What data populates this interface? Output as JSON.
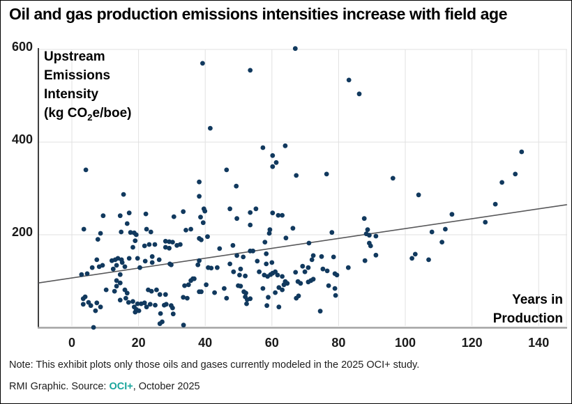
{
  "title": "Oil and gas production emissions intensities increase with field age",
  "y_axis": {
    "label_line1": "Upstream",
    "label_line2": "Emissions",
    "label_line3": "Intensity",
    "label_line4_pre": "(kg CO",
    "label_line4_sub": "2",
    "label_line4_post": "e/boe)"
  },
  "x_axis": {
    "label_line1": "Years in",
    "label_line2": "Production"
  },
  "note": "Note: This exhibit plots only those oils and gases currently modeled in the 2025 OCI+ study.",
  "source": {
    "prefix": "RMI Graphic. Source: ",
    "link": "OCI+",
    "suffix": ", October 2025"
  },
  "colors": {
    "dot": "#11395e",
    "trend": "#58585a",
    "grid": "#e1e1e1",
    "axis_bottom": "#a3a3a3",
    "axis_left": "#3f3f3f",
    "tick_text": "#1a1a1a",
    "source_link": "#1aa59c"
  },
  "chart_data": {
    "type": "scatter",
    "title": "Oil and gas production emissions intensities increase with field age",
    "xlabel": "Years in Production",
    "ylabel": "Upstream Emissions Intensity (kg CO2e/boe)",
    "xlim": [
      -10,
      148.5
    ],
    "ylim": [
      0,
      617
    ],
    "x_ticks": [
      0,
      20,
      40,
      60,
      80,
      100,
      120,
      140
    ],
    "y_ticks": [
      200,
      400,
      600
    ],
    "grid": true,
    "trend_line": {
      "x1": -10,
      "y1": 96,
      "x2": 148.5,
      "y2": 265
    },
    "points": [
      [
        67,
        602
      ],
      [
        39.2,
        570
      ],
      [
        53.5,
        555
      ],
      [
        83.1,
        534
      ],
      [
        86.2,
        504
      ],
      [
        41.5,
        430
      ],
      [
        64,
        392
      ],
      [
        57.3,
        388
      ],
      [
        60.2,
        371
      ],
      [
        61.3,
        356
      ],
      [
        60.2,
        347
      ],
      [
        46.4,
        340
      ],
      [
        4.2,
        340
      ],
      [
        38.2,
        314
      ],
      [
        49.3,
        305
      ],
      [
        67.3,
        328
      ],
      [
        76.4,
        331
      ],
      [
        96.3,
        322
      ],
      [
        134.9,
        379
      ],
      [
        133,
        331
      ],
      [
        129,
        313
      ],
      [
        104,
        286
      ],
      [
        127,
        266
      ],
      [
        114,
        244
      ],
      [
        124,
        227
      ],
      [
        112,
        212
      ],
      [
        108,
        206
      ],
      [
        111,
        184
      ],
      [
        103,
        158
      ],
      [
        102,
        149
      ],
      [
        107,
        146
      ],
      [
        15.5,
        287
      ],
      [
        38.2,
        283
      ],
      [
        39.6,
        256
      ],
      [
        39.9,
        251
      ],
      [
        33.4,
        250
      ],
      [
        17.2,
        247
      ],
      [
        22.2,
        245
      ],
      [
        9.4,
        241
      ],
      [
        14.5,
        241
      ],
      [
        30.6,
        239
      ],
      [
        38.6,
        238
      ],
      [
        39.4,
        226
      ],
      [
        16.6,
        224
      ],
      [
        3.6,
        212
      ],
      [
        22.4,
        212
      ],
      [
        23.7,
        206
      ],
      [
        34.2,
        210
      ],
      [
        35.7,
        212
      ],
      [
        47.4,
        256
      ],
      [
        55.2,
        256
      ],
      [
        53.5,
        248
      ],
      [
        49.5,
        235
      ],
      [
        53.5,
        221
      ],
      [
        60.2,
        247
      ],
      [
        61.9,
        242
      ],
      [
        63.1,
        242
      ],
      [
        59.4,
        211
      ],
      [
        59.2,
        203
      ],
      [
        66.3,
        214
      ],
      [
        64.2,
        193
      ],
      [
        78,
        205
      ],
      [
        87.7,
        235
      ],
      [
        88.3,
        202
      ],
      [
        89.2,
        199
      ],
      [
        88.7,
        211
      ],
      [
        8.6,
        203
      ],
      [
        14.8,
        206
      ],
      [
        17.6,
        205
      ],
      [
        18.7,
        204
      ],
      [
        19.3,
        200
      ],
      [
        38.2,
        192
      ],
      [
        38.8,
        189
      ],
      [
        40.7,
        196
      ],
      [
        28.1,
        186
      ],
      [
        29.2,
        185
      ],
      [
        30.2,
        184
      ],
      [
        31.5,
        177
      ],
      [
        32.5,
        179
      ],
      [
        57.9,
        184
      ],
      [
        58.3,
        159
      ],
      [
        48.3,
        177
      ],
      [
        44.3,
        170
      ],
      [
        53.5,
        165
      ],
      [
        54.3,
        165
      ],
      [
        49.5,
        155
      ],
      [
        51.4,
        152
      ],
      [
        71.1,
        182
      ],
      [
        72.4,
        155
      ],
      [
        74.9,
        153
      ],
      [
        78.5,
        152
      ],
      [
        89.2,
        182
      ],
      [
        89.6,
        176
      ],
      [
        91.2,
        197
      ],
      [
        91.2,
        156
      ],
      [
        29.2,
        171
      ],
      [
        28.1,
        173
      ],
      [
        18.3,
        173
      ],
      [
        21.8,
        176
      ],
      [
        23.2,
        179
      ],
      [
        24.9,
        179
      ],
      [
        19,
        187
      ],
      [
        7.8,
        190
      ],
      [
        55.6,
        143
      ],
      [
        43.6,
        129
      ],
      [
        47.4,
        137
      ],
      [
        48.5,
        120
      ],
      [
        50.6,
        126
      ],
      [
        56.2,
        120
      ],
      [
        58.3,
        137
      ],
      [
        60,
        140
      ],
      [
        61,
        120
      ],
      [
        67.1,
        119
      ],
      [
        69.2,
        132
      ],
      [
        70.9,
        129
      ],
      [
        69.9,
        120
      ],
      [
        72,
        146
      ],
      [
        75.3,
        126
      ],
      [
        76.6,
        122
      ],
      [
        82.9,
        129
      ],
      [
        87.9,
        144
      ],
      [
        24.1,
        153
      ],
      [
        26.2,
        146
      ],
      [
        22,
        143
      ],
      [
        24.1,
        140
      ],
      [
        40.9,
        129
      ],
      [
        41.8,
        128
      ],
      [
        38.2,
        144
      ],
      [
        37.8,
        135
      ],
      [
        29.4,
        137
      ],
      [
        29.8,
        135
      ],
      [
        7.5,
        146
      ],
      [
        6.1,
        129
      ],
      [
        8.2,
        131
      ],
      [
        9.2,
        134
      ],
      [
        12,
        144
      ],
      [
        13,
        146
      ],
      [
        13.8,
        149
      ],
      [
        14.9,
        146
      ],
      [
        15.1,
        140
      ],
      [
        13.4,
        134
      ],
      [
        12.4,
        126
      ],
      [
        15.9,
        131
      ],
      [
        17.2,
        149
      ],
      [
        19.7,
        149
      ],
      [
        20.4,
        129
      ],
      [
        50.3,
        113
      ],
      [
        52,
        111
      ],
      [
        57.7,
        113
      ],
      [
        58.7,
        110
      ],
      [
        59.6,
        114
      ],
      [
        60.2,
        117
      ],
      [
        61.7,
        113
      ],
      [
        63.1,
        110
      ],
      [
        64,
        99
      ],
      [
        64.6,
        95
      ],
      [
        63.6,
        92
      ],
      [
        67.8,
        99
      ],
      [
        68.6,
        95
      ],
      [
        71.7,
        101
      ],
      [
        72.4,
        104
      ],
      [
        70.9,
        98
      ],
      [
        77,
        90
      ],
      [
        78.9,
        116
      ],
      [
        79.5,
        113
      ],
      [
        2.9,
        114
      ],
      [
        4.6,
        116
      ],
      [
        14.5,
        114
      ],
      [
        13.4,
        101
      ],
      [
        14.5,
        96
      ],
      [
        33.8,
        90
      ],
      [
        35,
        92
      ],
      [
        35.7,
        101
      ],
      [
        36.3,
        105
      ],
      [
        36.7,
        105
      ],
      [
        40.3,
        92
      ],
      [
        49.9,
        90
      ],
      [
        50.6,
        89
      ],
      [
        62.1,
        86
      ],
      [
        63.1,
        81
      ],
      [
        61,
        75
      ],
      [
        57.3,
        84
      ],
      [
        45.7,
        84
      ],
      [
        46.4,
        63
      ],
      [
        51.6,
        77
      ],
      [
        52.2,
        74
      ],
      [
        52,
        66
      ],
      [
        52.6,
        60
      ],
      [
        53.5,
        62
      ],
      [
        58.9,
        65
      ],
      [
        67.3,
        63
      ],
      [
        68,
        68
      ],
      [
        78.9,
        84
      ],
      [
        79.1,
        69
      ],
      [
        13.4,
        89
      ],
      [
        15.9,
        81
      ],
      [
        10.3,
        81
      ],
      [
        12.8,
        78
      ],
      [
        16.6,
        74
      ],
      [
        23.9,
        78
      ],
      [
        22.9,
        81
      ],
      [
        25.4,
        81
      ],
      [
        33.4,
        65
      ],
      [
        34.6,
        63
      ],
      [
        38.2,
        77
      ],
      [
        38.8,
        77
      ],
      [
        42.8,
        75
      ],
      [
        28.1,
        71
      ],
      [
        26.4,
        71
      ],
      [
        16.2,
        63
      ],
      [
        4,
        66
      ],
      [
        3.4,
        62
      ],
      [
        52.4,
        51
      ],
      [
        58.5,
        47
      ],
      [
        62.1,
        44
      ],
      [
        74.5,
        35
      ],
      [
        26.6,
        30
      ],
      [
        30.4,
        29
      ],
      [
        28.3,
        50
      ],
      [
        27.7,
        48
      ],
      [
        29.8,
        47
      ],
      [
        30.2,
        42
      ],
      [
        3.4,
        50
      ],
      [
        5,
        54
      ],
      [
        5.7,
        47
      ],
      [
        7.5,
        53
      ],
      [
        8.6,
        44
      ],
      [
        7.1,
        36
      ],
      [
        14.5,
        59
      ],
      [
        17,
        54
      ],
      [
        18.3,
        56
      ],
      [
        19.7,
        51
      ],
      [
        20.8,
        51
      ],
      [
        21.8,
        53
      ],
      [
        18.7,
        44
      ],
      [
        19.3,
        39
      ],
      [
        20.1,
        36
      ],
      [
        19,
        33
      ],
      [
        22.4,
        44
      ],
      [
        23.5,
        50
      ],
      [
        25,
        48
      ],
      [
        27.1,
        12
      ],
      [
        6.5,
        0
      ],
      [
        33.5,
        5
      ],
      [
        26.4,
        8
      ]
    ]
  }
}
